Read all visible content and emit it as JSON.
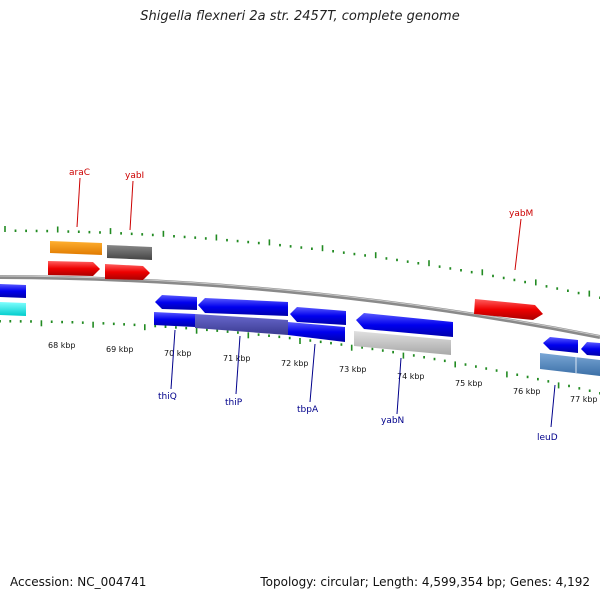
{
  "title": "Shigella flexneri 2a str. 2457T, complete genome",
  "footer": {
    "accession": "Accession: NC_004741",
    "summary": "Topology: circular; Length: 4,599,354 bp; Genes: 4,192"
  },
  "colors": {
    "backbone": "#8a8a8a",
    "tick": "#228b22",
    "forward_gene_label": "#cc0000",
    "reverse_gene_label": "#00008b"
  },
  "kbp_labels": [
    "68 kbp",
    "69 kbp",
    "70 kbp",
    "71 kbp",
    "72 kbp",
    "73 kbp",
    "74 kbp",
    "75 kbp",
    "76 kbp",
    "77 kbp"
  ],
  "forward_gene_labels": [
    "araC",
    "yabI",
    "yabM"
  ],
  "reverse_gene_labels": [
    "thiQ",
    "thiP",
    "tbpA",
    "yabN",
    "leuD"
  ]
}
